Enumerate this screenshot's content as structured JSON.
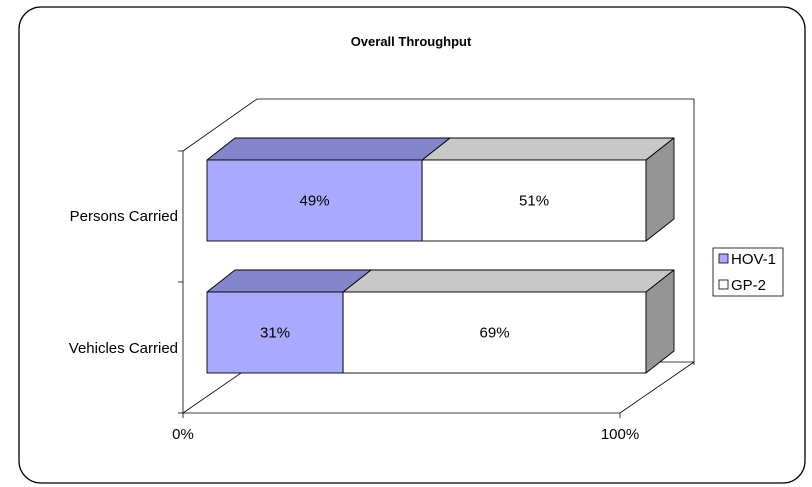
{
  "chart_data": {
    "type": "bar",
    "orientation": "horizontal",
    "stacked": "100%",
    "style": "3d",
    "title": "Overall Throughput",
    "categories": [
      "Persons Carried",
      "Vehicles Carried"
    ],
    "series": [
      {
        "name": "HOV-1",
        "values": [
          49,
          31
        ],
        "color": "#a9a9ff",
        "top_color": "#8585cc"
      },
      {
        "name": "GP-2",
        "values": [
          51,
          69
        ],
        "color": "#ffffff",
        "top_color": "#c8c8c8"
      }
    ],
    "data_labels": [
      [
        "49%",
        "31%"
      ],
      [
        "51%",
        "69%"
      ]
    ],
    "xlim": [
      0,
      100
    ],
    "x_tick_labels": [
      "0%",
      "100%"
    ],
    "legend": "right",
    "grid": false,
    "side_color": "#959595"
  }
}
